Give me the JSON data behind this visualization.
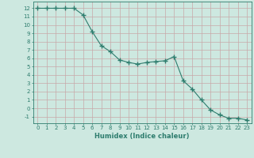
{
  "x": [
    0,
    1,
    2,
    3,
    4,
    5,
    6,
    7,
    8,
    9,
    10,
    11,
    12,
    13,
    14,
    15,
    16,
    17,
    18,
    19,
    20,
    21,
    22,
    23
  ],
  "y": [
    12,
    12,
    12,
    12,
    12,
    11.2,
    9.2,
    7.5,
    6.8,
    5.8,
    5.5,
    5.3,
    5.5,
    5.6,
    5.7,
    6.2,
    3.3,
    2.3,
    1.0,
    -0.2,
    -0.8,
    -1.2,
    -1.2,
    -1.4
  ],
  "line_color": "#2e7d6e",
  "marker": "+",
  "bg_color": "#cde8e0",
  "grid_color": "#b8d8cc",
  "xlabel": "Humidex (Indice chaleur)",
  "xlim": [
    -0.5,
    23.5
  ],
  "ylim": [
    -1.8,
    12.8
  ],
  "yticks": [
    -1,
    0,
    1,
    2,
    3,
    4,
    5,
    6,
    7,
    8,
    9,
    10,
    11,
    12
  ],
  "xticks": [
    0,
    1,
    2,
    3,
    4,
    5,
    6,
    7,
    8,
    9,
    10,
    11,
    12,
    13,
    14,
    15,
    16,
    17,
    18,
    19,
    20,
    21,
    22,
    23
  ],
  "font_color": "#2e7d6e",
  "tick_fontsize": 5.0,
  "xlabel_fontsize": 6.0
}
